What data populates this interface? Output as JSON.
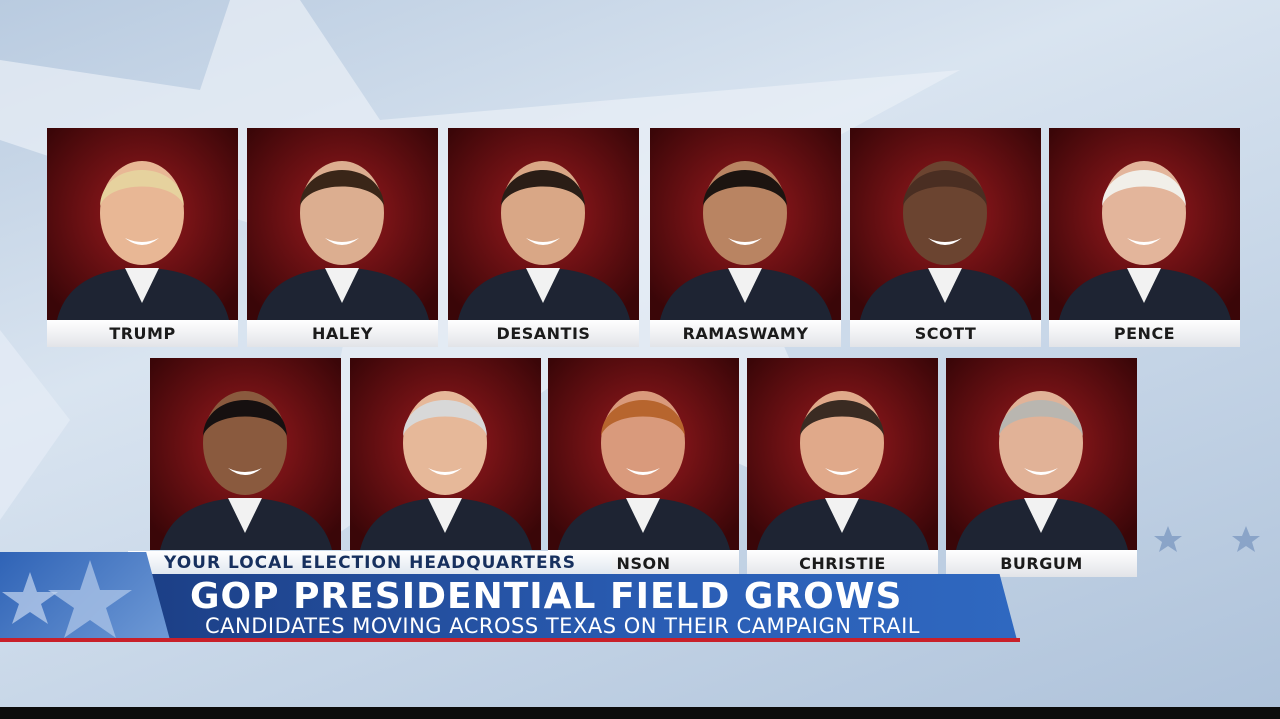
{
  "candidates": {
    "row1": [
      "TRUMP",
      "HALEY",
      "DESANTIS",
      "RAMASWAMY",
      "SCOTT",
      "PENCE"
    ],
    "row2": [
      "NSON",
      "CHRISTIE",
      "BURGUM"
    ]
  },
  "banner": {
    "kicker": "YOUR LOCAL ELECTION HEADQUARTERS",
    "headline": "GOP PRESIDENTIAL FIELD GROWS",
    "subline": "CANDIDATES MOVING ACROSS TEXAS ON THEIR CAMPAIGN TRAIL"
  }
}
